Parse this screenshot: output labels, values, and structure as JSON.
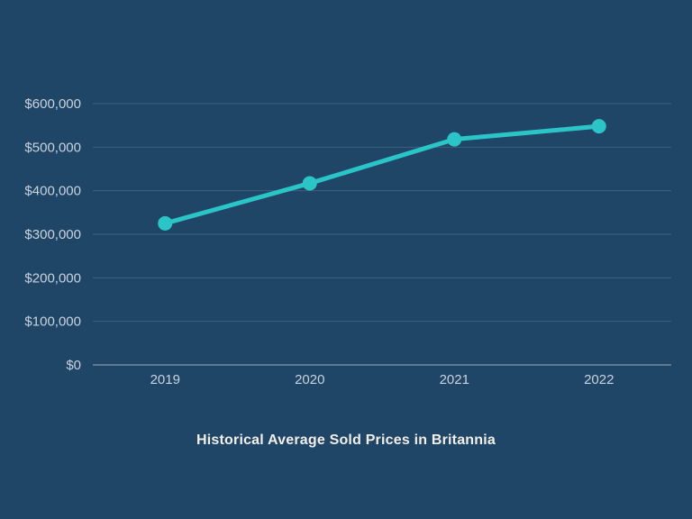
{
  "chart_data": {
    "type": "line",
    "title": "Historical Average Sold Prices in Britannia",
    "categories": [
      "2019",
      "2020",
      "2021",
      "2022"
    ],
    "values": [
      325000,
      417000,
      518000,
      548000
    ],
    "xlabel": "",
    "ylabel": "",
    "ylim": [
      0,
      600000
    ],
    "ytick_interval": 100000,
    "ytick_labels": [
      "$0",
      "$100,000",
      "$200,000",
      "$300,000",
      "$400,000",
      "$500,000",
      "$600,000"
    ],
    "grid": true,
    "legend": "none",
    "marker_style": "filled-circle"
  },
  "colors": {
    "background": "#1f4567",
    "line": "#2bc5c8",
    "marker": "#2bc5c8",
    "gridline": "#3e5f7d",
    "zero_axis": "#5d7a95",
    "tick_label": "#c9d3de",
    "title_text": "#f2efe9"
  }
}
